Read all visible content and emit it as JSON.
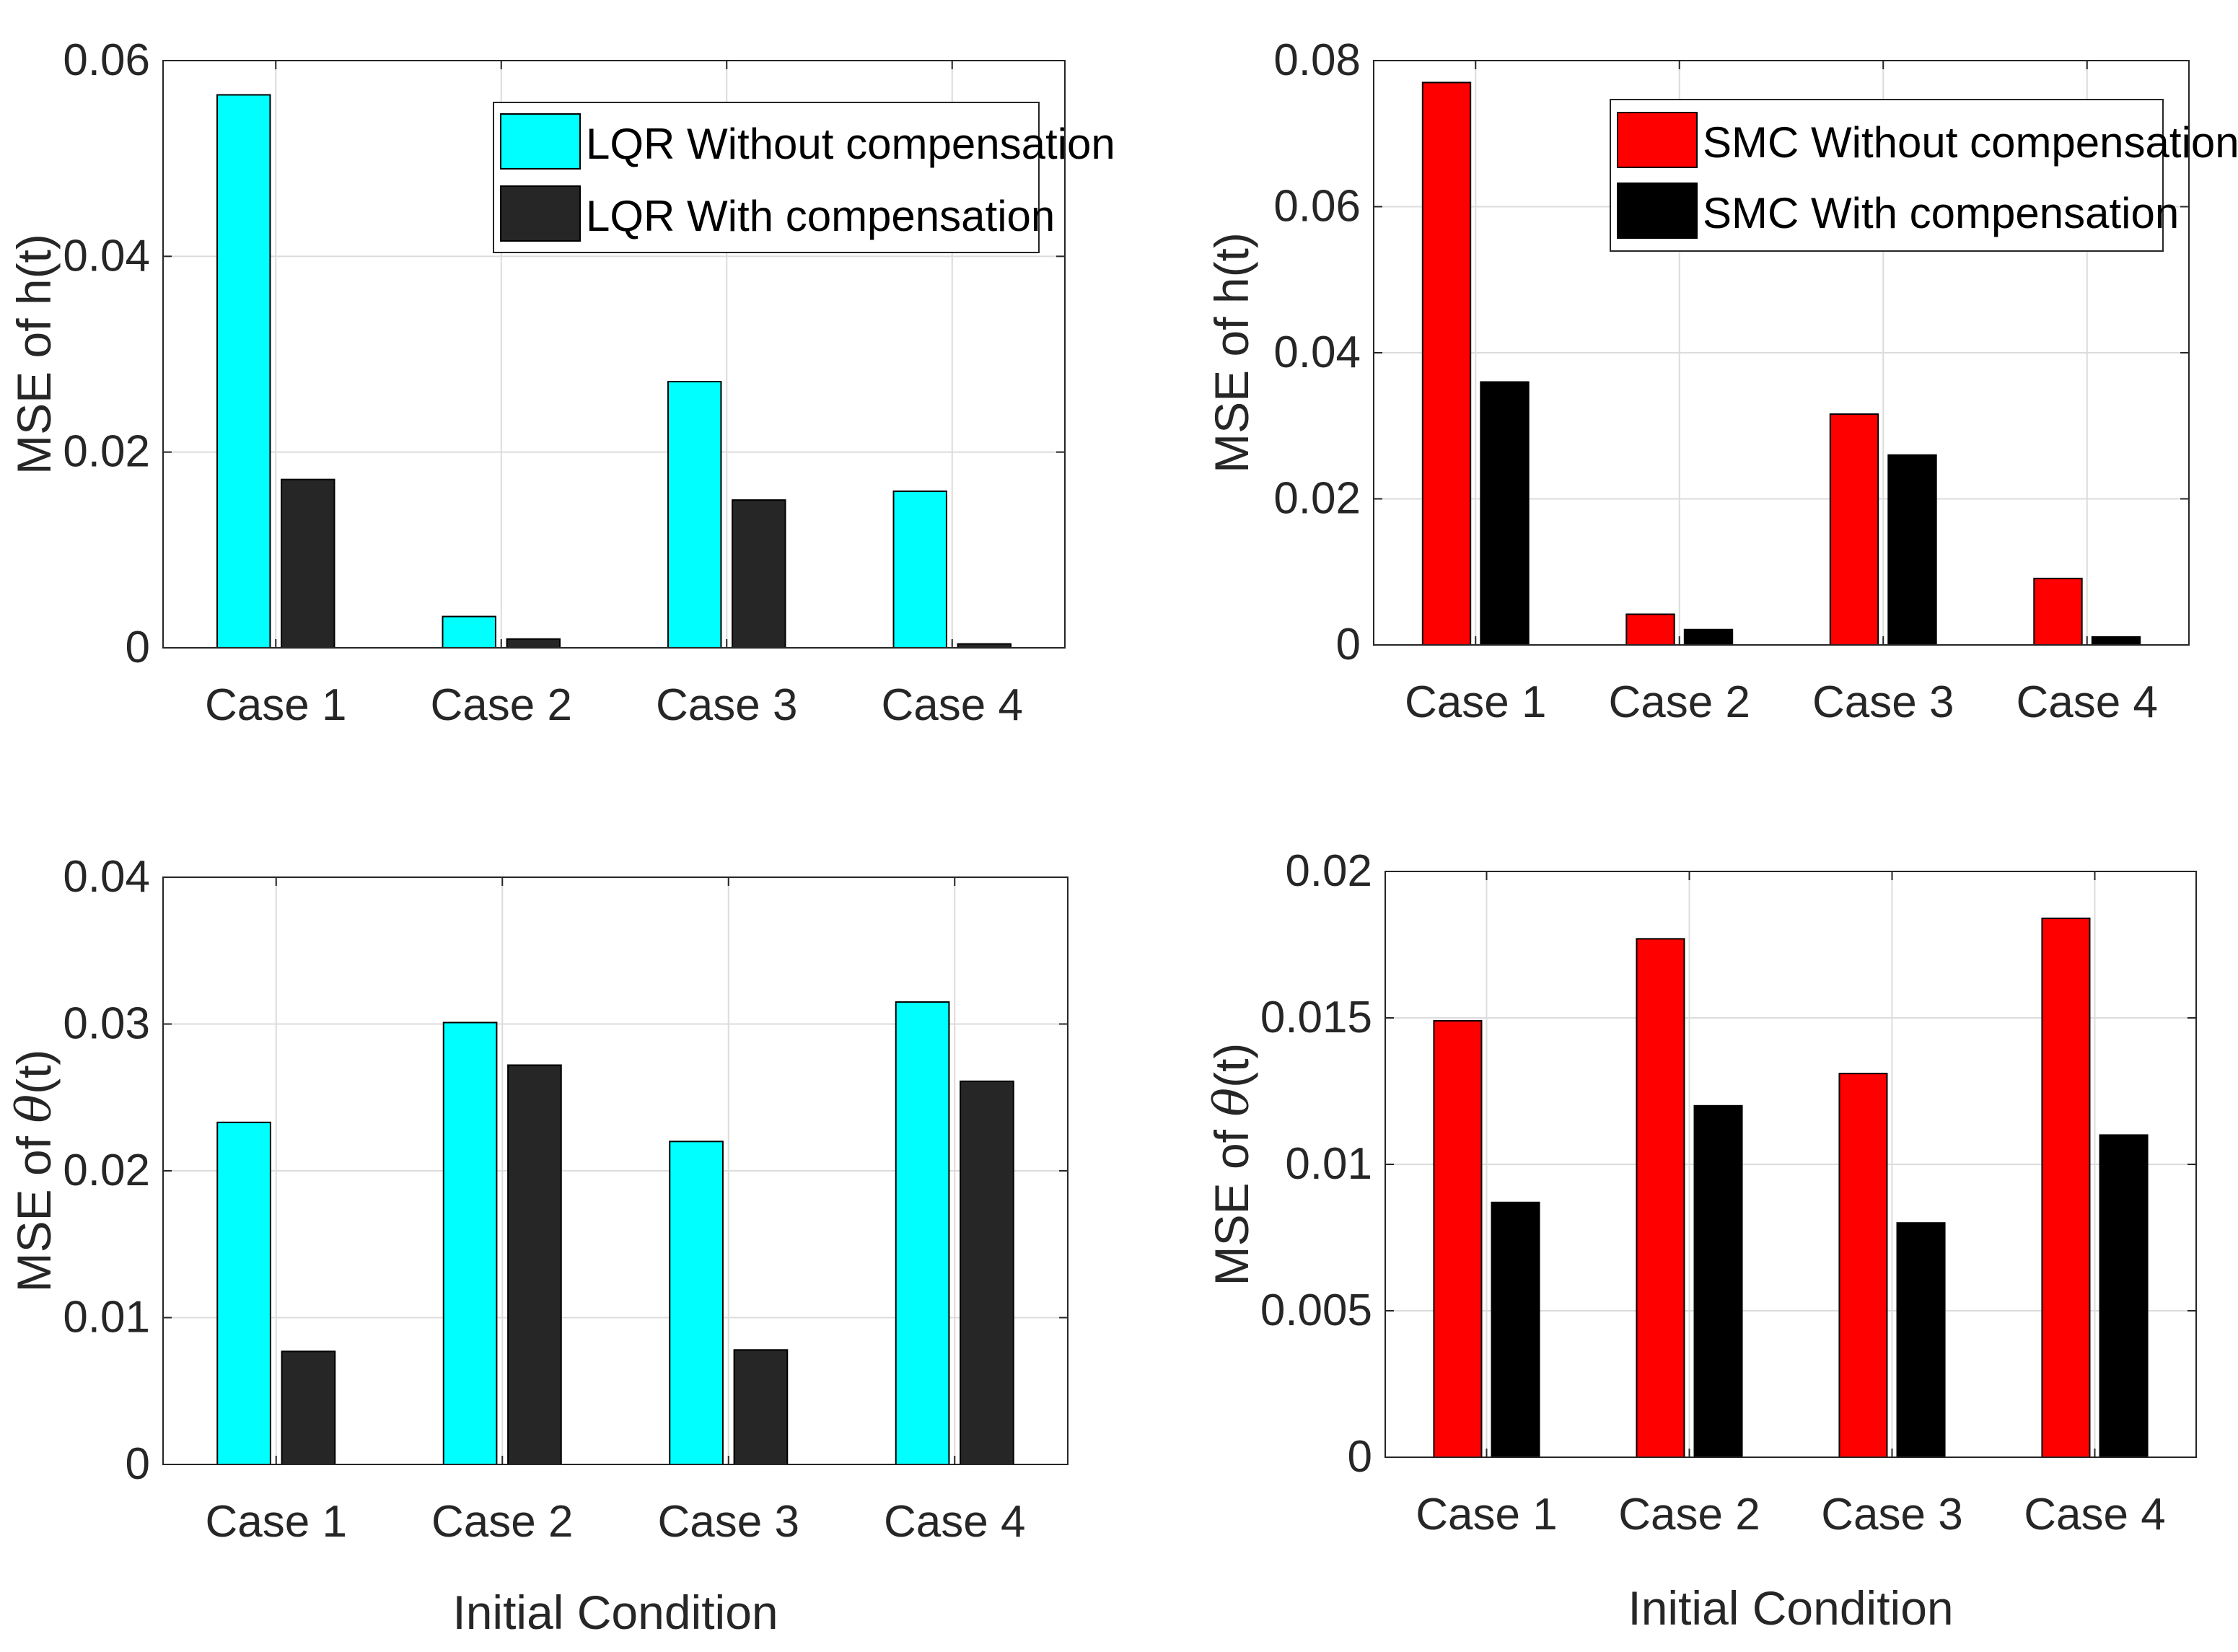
{
  "figure": {
    "xlabel": "Initial Condition"
  },
  "chart_data": [
    {
      "type": "bar",
      "panel": "top-left",
      "categories": [
        "Case 1",
        "Case 2",
        "Case 3",
        "Case 4"
      ],
      "series": [
        {
          "name": "LQR Without compensation",
          "color": "#00FFFF",
          "values": [
            0.0565,
            0.0032,
            0.0272,
            0.016
          ]
        },
        {
          "name": "LQR With compensation",
          "color": "#262626",
          "values": [
            0.0172,
            0.0009,
            0.0151,
            0.0004
          ]
        }
      ],
      "ylim": [
        0,
        0.06
      ],
      "yticks": [
        "0",
        "0.02",
        "0.04",
        "0.06"
      ],
      "ylabel": "MSE of h(t)",
      "xlabel": "",
      "grid": true,
      "legend_position": "top-right"
    },
    {
      "type": "bar",
      "panel": "top-right",
      "categories": [
        "Case 1",
        "Case 2",
        "Case 3",
        "Case 4"
      ],
      "series": [
        {
          "name": "SMC Without compensation",
          "color": "#FF0000",
          "values": [
            0.077,
            0.0042,
            0.0316,
            0.0091
          ]
        },
        {
          "name": "SMC With compensation",
          "color": "#000000",
          "values": [
            0.036,
            0.0021,
            0.026,
            0.0011
          ]
        }
      ],
      "ylim": [
        0,
        0.08
      ],
      "yticks": [
        "0",
        "0.02",
        "0.04",
        "0.06",
        "0.08"
      ],
      "ylabel": "MSE of h(t)",
      "xlabel": "",
      "grid": true,
      "legend_position": "top-right"
    },
    {
      "type": "bar",
      "panel": "bottom-left",
      "categories": [
        "Case 1",
        "Case 2",
        "Case 3",
        "Case 4"
      ],
      "series": [
        {
          "name": "LQR Without compensation",
          "color": "#00FFFF",
          "values": [
            0.0233,
            0.0301,
            0.022,
            0.0315
          ]
        },
        {
          "name": "LQR With compensation",
          "color": "#262626",
          "values": [
            0.0077,
            0.0272,
            0.0078,
            0.0261
          ]
        }
      ],
      "ylim": [
        0,
        0.04
      ],
      "yticks": [
        "0",
        "0.01",
        "0.02",
        "0.03",
        "0.04"
      ],
      "ylabel_prefix": "MSE of ",
      "ylabel_symbol": "θ",
      "ylabel_suffix": "(t)",
      "xlabel": "Initial Condition",
      "grid": true
    },
    {
      "type": "bar",
      "panel": "bottom-right",
      "categories": [
        "Case 1",
        "Case 2",
        "Case 3",
        "Case 4"
      ],
      "series": [
        {
          "name": "SMC Without compensation",
          "color": "#FF0000",
          "values": [
            0.0149,
            0.0177,
            0.0131,
            0.0184
          ]
        },
        {
          "name": "SMC With compensation",
          "color": "#000000",
          "values": [
            0.0087,
            0.012,
            0.008,
            0.011
          ]
        }
      ],
      "ylim": [
        0,
        0.02
      ],
      "yticks": [
        "0",
        "0.005",
        "0.01",
        "0.015",
        "0.02"
      ],
      "ylabel_prefix": "MSE of ",
      "ylabel_symbol": "θ",
      "ylabel_suffix": "(t)",
      "xlabel": "Initial Condition",
      "grid": true
    }
  ]
}
